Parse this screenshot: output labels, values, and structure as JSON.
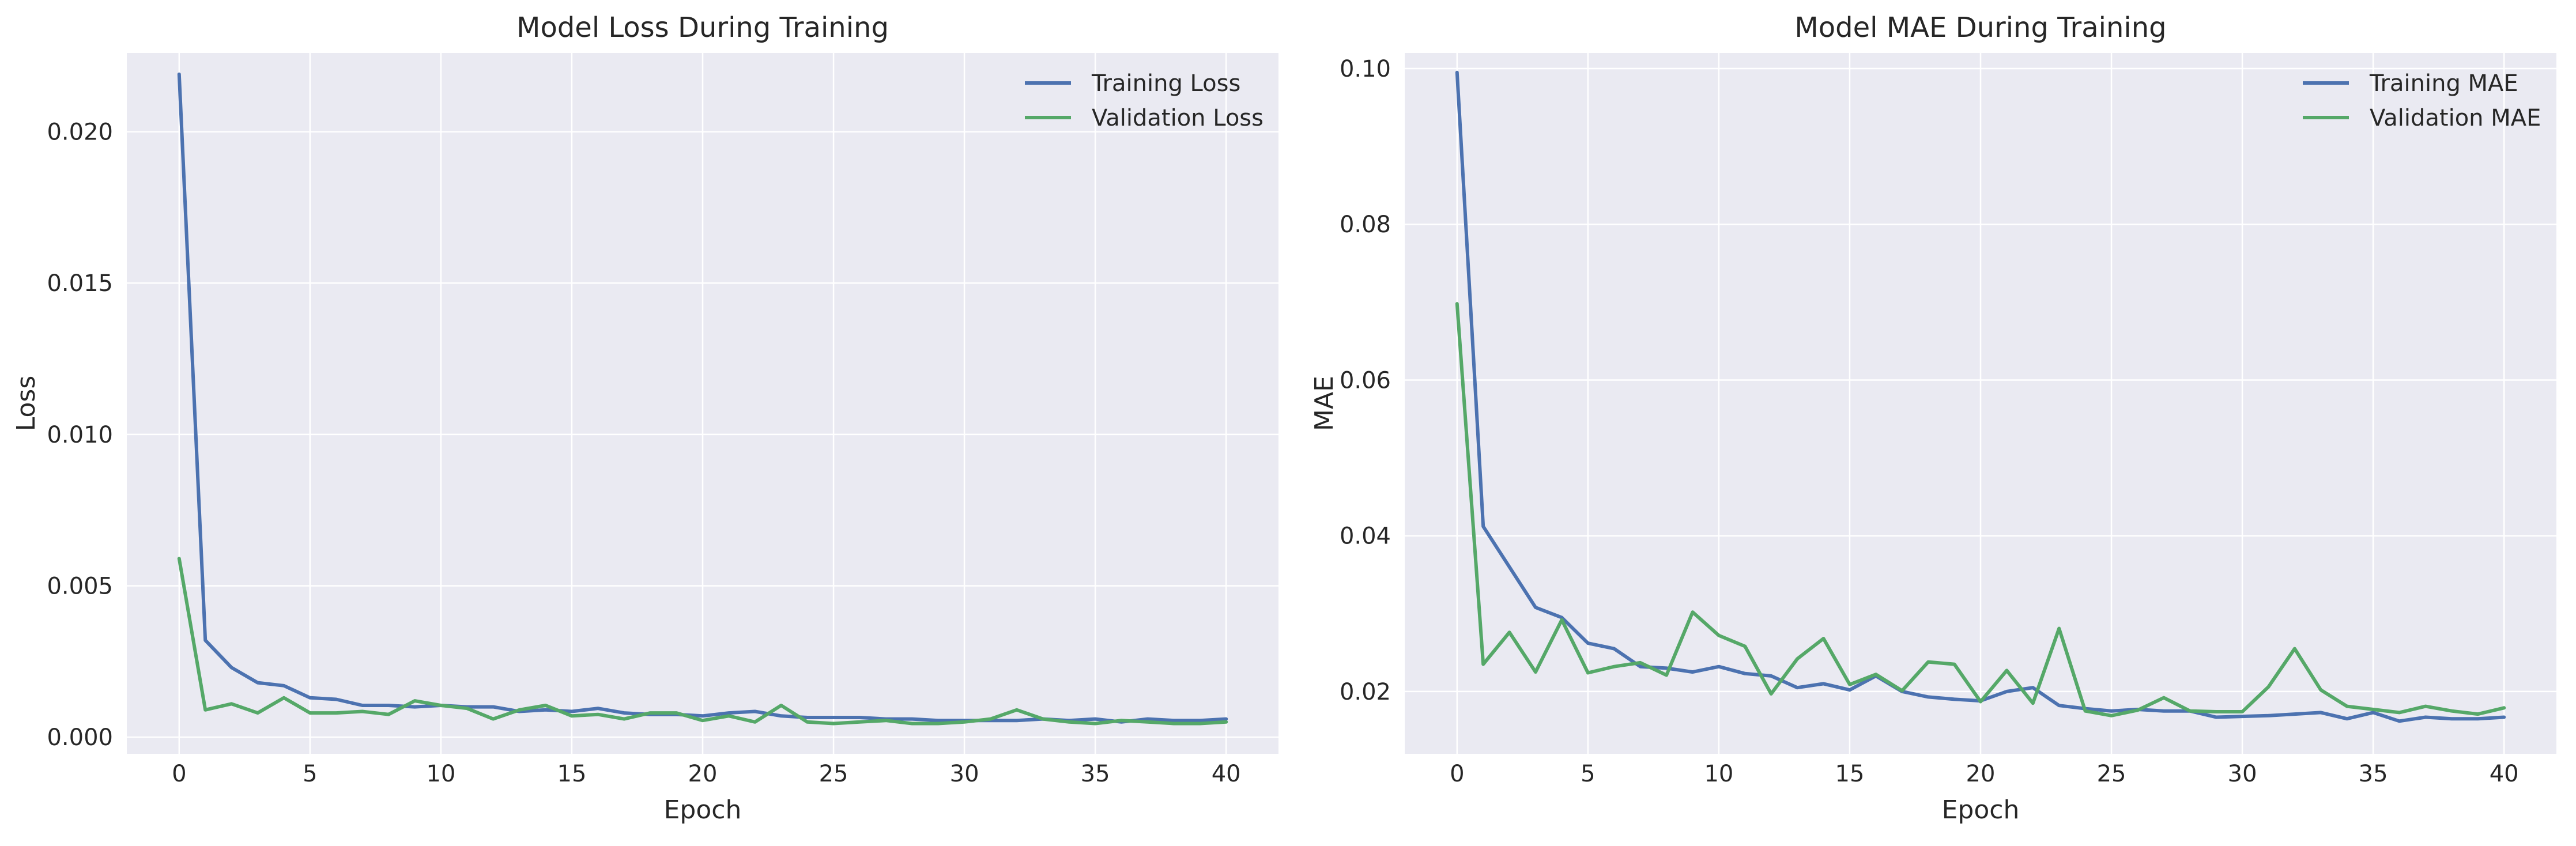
{
  "chart_data": [
    {
      "type": "line",
      "title": "Model Loss During Training",
      "xlabel": "Epoch",
      "ylabel": "Loss",
      "xlim": [
        -2,
        42
      ],
      "ylim": [
        -0.00055,
        0.0226
      ],
      "xticks": [
        0,
        5,
        10,
        15,
        20,
        25,
        30,
        35,
        40
      ],
      "xtick_labels": [
        "0",
        "5",
        "10",
        "15",
        "20",
        "25",
        "30",
        "35",
        "40"
      ],
      "yticks": [
        0.0,
        0.005,
        0.01,
        0.015,
        0.02
      ],
      "ytick_labels": [
        "0.000",
        "0.005",
        "0.010",
        "0.015",
        "0.020"
      ],
      "grid": true,
      "legend_position": "top-right",
      "x": [
        0,
        1,
        2,
        3,
        4,
        5,
        6,
        7,
        8,
        9,
        10,
        11,
        12,
        13,
        14,
        15,
        16,
        17,
        18,
        19,
        20,
        21,
        22,
        23,
        24,
        25,
        26,
        27,
        28,
        29,
        30,
        31,
        32,
        33,
        34,
        35,
        36,
        37,
        38,
        39,
        40
      ],
      "series": [
        {
          "name": "Training Loss",
          "color": "#4c72b0",
          "values": [
            0.0219,
            0.0032,
            0.0023,
            0.0018,
            0.0017,
            0.0013,
            0.00125,
            0.00105,
            0.00105,
            0.001,
            0.00105,
            0.001,
            0.001,
            0.00085,
            0.0009,
            0.00085,
            0.00095,
            0.0008,
            0.00075,
            0.00075,
            0.0007,
            0.0008,
            0.00085,
            0.0007,
            0.00065,
            0.00065,
            0.00065,
            0.0006,
            0.0006,
            0.00055,
            0.00055,
            0.00055,
            0.00055,
            0.0006,
            0.00055,
            0.0006,
            0.0005,
            0.0006,
            0.00055,
            0.00055,
            0.0006
          ]
        },
        {
          "name": "Validation Loss",
          "color": "#55a868",
          "values": [
            0.0059,
            0.0009,
            0.0011,
            0.0008,
            0.0013,
            0.0008,
            0.0008,
            0.00085,
            0.00075,
            0.0012,
            0.00105,
            0.00095,
            0.0006,
            0.0009,
            0.00105,
            0.0007,
            0.00075,
            0.0006,
            0.0008,
            0.0008,
            0.00055,
            0.0007,
            0.0005,
            0.00105,
            0.0005,
            0.00045,
            0.0005,
            0.00055,
            0.00045,
            0.00045,
            0.0005,
            0.0006,
            0.0009,
            0.0006,
            0.0005,
            0.00045,
            0.00055,
            0.0005,
            0.00045,
            0.00045,
            0.0005
          ]
        }
      ]
    },
    {
      "type": "line",
      "title": "Model MAE During Training",
      "xlabel": "Epoch",
      "ylabel": "MAE",
      "xlim": [
        -2,
        42
      ],
      "ylim": [
        0.012,
        0.102
      ],
      "xticks": [
        0,
        5,
        10,
        15,
        20,
        25,
        30,
        35,
        40
      ],
      "xtick_labels": [
        "0",
        "5",
        "10",
        "15",
        "20",
        "25",
        "30",
        "35",
        "40"
      ],
      "yticks": [
        0.02,
        0.04,
        0.06,
        0.08,
        0.1
      ],
      "ytick_labels": [
        "0.02",
        "0.04",
        "0.06",
        "0.08",
        "0.10"
      ],
      "grid": true,
      "legend_position": "top-right",
      "x": [
        0,
        1,
        2,
        3,
        4,
        5,
        6,
        7,
        8,
        9,
        10,
        11,
        12,
        13,
        14,
        15,
        16,
        17,
        18,
        19,
        20,
        21,
        22,
        23,
        24,
        25,
        26,
        27,
        28,
        29,
        30,
        31,
        32,
        33,
        34,
        35,
        36,
        37,
        38,
        39,
        40
      ],
      "series": [
        {
          "name": "Training MAE",
          "color": "#4c72b0",
          "values": [
            0.0995,
            0.0412,
            0.036,
            0.0308,
            0.0295,
            0.0262,
            0.0255,
            0.0232,
            0.023,
            0.0225,
            0.0232,
            0.0223,
            0.022,
            0.0205,
            0.021,
            0.0202,
            0.022,
            0.02,
            0.0193,
            0.019,
            0.0188,
            0.02,
            0.0205,
            0.0182,
            0.0178,
            0.0175,
            0.0177,
            0.0175,
            0.0175,
            0.0167,
            0.0168,
            0.0169,
            0.0171,
            0.0173,
            0.0165,
            0.0173,
            0.0162,
            0.0167,
            0.0165,
            0.0165,
            0.0167
          ]
        },
        {
          "name": "Validation MAE",
          "color": "#55a868",
          "values": [
            0.0698,
            0.0235,
            0.0276,
            0.0225,
            0.0292,
            0.0224,
            0.0232,
            0.0237,
            0.0221,
            0.0302,
            0.0272,
            0.0258,
            0.0197,
            0.0242,
            0.0268,
            0.0209,
            0.0222,
            0.0201,
            0.0238,
            0.0235,
            0.0187,
            0.0227,
            0.0185,
            0.0281,
            0.0175,
            0.0169,
            0.0176,
            0.0192,
            0.0175,
            0.0174,
            0.0174,
            0.0206,
            0.0255,
            0.0202,
            0.0181,
            0.0177,
            0.0173,
            0.0181,
            0.0175,
            0.0171,
            0.0179
          ]
        }
      ]
    }
  ]
}
